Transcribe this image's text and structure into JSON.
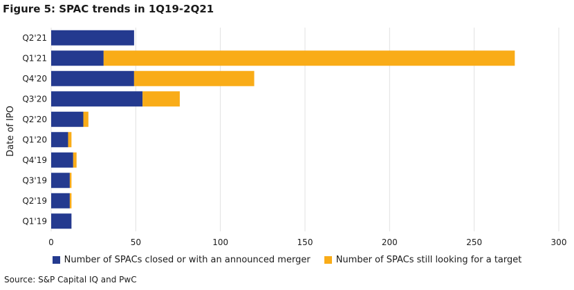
{
  "title": "Figure 5: SPAC trends in 1Q19-2Q21",
  "source": "Source: S&P Capital IQ and PwC",
  "colors": {
    "closed": "#243a8f",
    "looking": "#f9ac18",
    "grid": "#e0e0e0"
  },
  "chart_data": {
    "type": "bar",
    "orientation": "horizontal",
    "stacked": true,
    "categories": [
      "Q2'21",
      "Q1'21",
      "Q4'20",
      "Q3'20",
      "Q2'20",
      "Q1'20",
      "Q4'19",
      "Q3'19",
      "Q2'19",
      "Q1'19"
    ],
    "series": [
      {
        "name": "Number of SPACs closed or with an announced merger",
        "values": [
          49,
          31,
          49,
          54,
          19,
          10,
          13,
          11,
          11,
          12
        ]
      },
      {
        "name": "Number of SPACs still looking for a target",
        "values": [
          0,
          243,
          71,
          22,
          3,
          2,
          2,
          1,
          1,
          0
        ]
      }
    ],
    "ylabel": "Date of IPO",
    "xlabel": "",
    "xlim": [
      0,
      300
    ],
    "xticks": [
      0,
      50,
      100,
      150,
      200,
      250,
      300
    ],
    "grid": "vertical",
    "legend_position": "bottom"
  }
}
